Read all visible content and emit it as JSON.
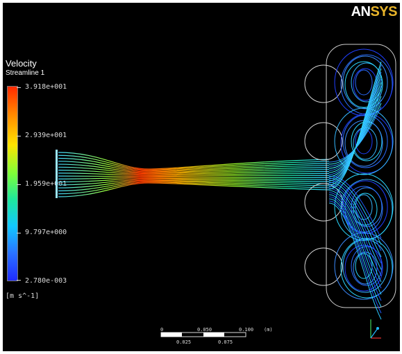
{
  "logo": {
    "an": "AN",
    "sys": "SYS"
  },
  "legend": {
    "title": "Velocity",
    "subtitle": "Streamline 1",
    "ticks": [
      "3.918e+001",
      "2.939e+001",
      "1.959e+001",
      "9.797e+000",
      "2.780e-003"
    ],
    "units": "[m s^-1]"
  },
  "scale": {
    "labels_top": [
      "0",
      "0.050",
      "0.100",
      "(m)"
    ],
    "labels_bottom": [
      "0.025",
      "0.075"
    ]
  },
  "colors": {
    "background": "#000000",
    "colormap": [
      "#1f2bff",
      "#2a72ff",
      "#12c8ff",
      "#1fe89c",
      "#7dff3a",
      "#ffe400",
      "#ff8c00",
      "#ff2a00"
    ]
  }
}
